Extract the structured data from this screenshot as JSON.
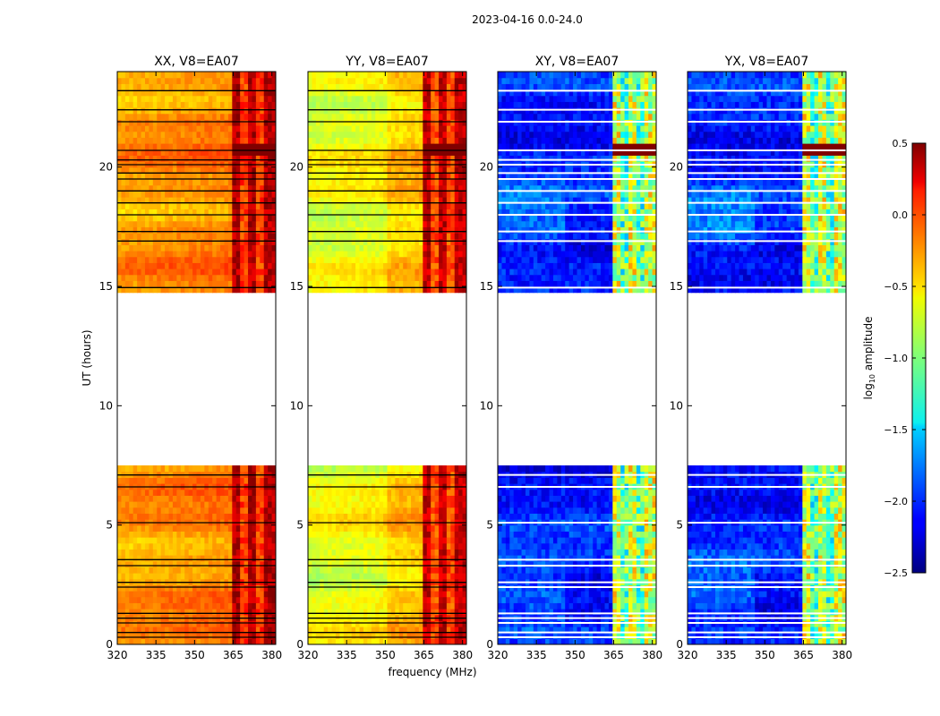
{
  "figure_title": "2023-04-16 0.0-24.0",
  "chart_data": {
    "type": "heatmap",
    "title": "2023-04-16 0.0-24.0",
    "shared_x_axis": {
      "label": "frequency (MHz)",
      "range": [
        320,
        381.5
      ],
      "ticks": [
        320,
        335,
        350,
        365,
        380
      ],
      "tick_labels": [
        "320",
        "335",
        "350",
        "365",
        "380"
      ]
    },
    "shared_y_axis": {
      "label": "UT (hours)",
      "range": [
        0,
        24
      ],
      "ticks": [
        0,
        5,
        10,
        15,
        20
      ],
      "tick_labels": [
        "0",
        "5",
        "10",
        "15",
        "20"
      ]
    },
    "data_gaps_hours": [
      [
        7.5,
        14.7
      ]
    ],
    "flagged_rows_hours": [
      0.3,
      0.5,
      0.9,
      1.1,
      1.3,
      2.4,
      2.6,
      3.3,
      3.55,
      5.1,
      6.6,
      7.1,
      14.95,
      16.9,
      17.3,
      18.0,
      18.5,
      19.0,
      19.5,
      19.75,
      20.1,
      20.3,
      20.7,
      21.9,
      22.4,
      23.2
    ],
    "panels": [
      {
        "name": "XX",
        "title": "XX, V8=EA07",
        "mean_log10_amplitude": -0.35,
        "rfi_band_mhz": [
          364,
          380
        ],
        "rfi_log10_amplitude": 0.2
      },
      {
        "name": "YY",
        "title": "YY, V8=EA07",
        "mean_log10_amplitude": -0.55,
        "rfi_band_mhz": [
          364,
          380
        ],
        "rfi_log10_amplitude": 0.15
      },
      {
        "name": "XY",
        "title": "XY, V8=EA07",
        "mean_log10_amplitude": -2.05,
        "rfi_band_mhz": [
          364,
          380
        ],
        "rfi_log10_amplitude": -0.9
      },
      {
        "name": "YX",
        "title": "YX, V8=EA07",
        "mean_log10_amplitude": -2.05,
        "rfi_band_mhz": [
          364,
          380
        ],
        "rfi_log10_amplitude": -0.9
      }
    ],
    "colorbar": {
      "label": "log",
      "label_subscript": "10",
      "label_suffix": " amplitude",
      "range": [
        -2.5,
        0.5
      ],
      "colormap": "jet",
      "ticks": [
        0.5,
        0.0,
        -0.5,
        -1.0,
        -1.5,
        -2.0,
        -2.5
      ],
      "tick_labels": [
        "0.5",
        "0.0",
        "−0.5",
        "−1.0",
        "−1.5",
        "−2.0",
        "−2.5"
      ]
    }
  }
}
